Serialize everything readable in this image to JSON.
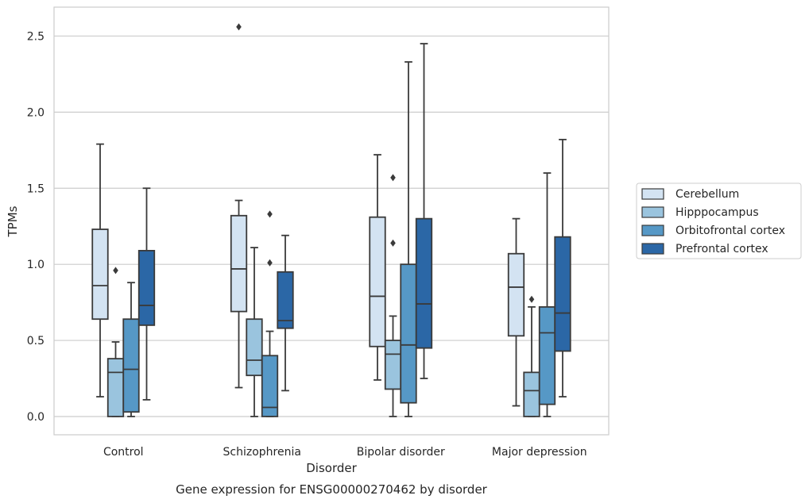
{
  "chart_data": {
    "type": "box",
    "caption": "Gene expression for ENSG00000270462 by disorder",
    "xlabel": "Disorder",
    "ylabel": "TPMs",
    "ylim": [
      -0.12,
      2.69
    ],
    "yticks": [
      "0.0",
      "0.5",
      "1.0",
      "1.5",
      "2.0",
      "2.5"
    ],
    "grid": "horizontal",
    "legend_position": "right",
    "categories": [
      "Control",
      "Schizophrenia",
      "Bipolar disorder",
      "Major depression"
    ],
    "series": [
      {
        "name": "Cerebellum",
        "color": "#d3e3f2",
        "boxes": [
          {
            "whislo": 0.13,
            "q1": 0.64,
            "med": 0.86,
            "q3": 1.23,
            "whishi": 1.79,
            "fliers": []
          },
          {
            "whislo": 0.19,
            "q1": 0.69,
            "med": 0.97,
            "q3": 1.32,
            "whishi": 1.42,
            "fliers": [
              2.56
            ]
          },
          {
            "whislo": 0.24,
            "q1": 0.46,
            "med": 0.79,
            "q3": 1.31,
            "whishi": 1.72,
            "fliers": []
          },
          {
            "whislo": 0.07,
            "q1": 0.53,
            "med": 0.85,
            "q3": 1.07,
            "whishi": 1.3,
            "fliers": []
          }
        ]
      },
      {
        "name": "Hipppocampus",
        "color": "#9ac4de",
        "boxes": [
          {
            "whislo": 0.0,
            "q1": 0.0,
            "med": 0.29,
            "q3": 0.38,
            "whishi": 0.49,
            "fliers": [
              0.96
            ]
          },
          {
            "whislo": 0.0,
            "q1": 0.27,
            "med": 0.37,
            "q3": 0.64,
            "whishi": 1.11,
            "fliers": []
          },
          {
            "whislo": 0.0,
            "q1": 0.18,
            "med": 0.41,
            "q3": 0.5,
            "whishi": 0.66,
            "fliers": [
              1.14,
              1.57
            ]
          },
          {
            "whislo": 0.0,
            "q1": 0.0,
            "med": 0.17,
            "q3": 0.29,
            "whishi": 0.72,
            "fliers": [
              0.77
            ]
          }
        ]
      },
      {
        "name": "Orbitofrontal cortex",
        "color": "#5698c6",
        "boxes": [
          {
            "whislo": 0.0,
            "q1": 0.03,
            "med": 0.31,
            "q3": 0.64,
            "whishi": 0.88,
            "fliers": []
          },
          {
            "whislo": 0.0,
            "q1": 0.0,
            "med": 0.06,
            "q3": 0.4,
            "whishi": 0.56,
            "fliers": [
              1.01,
              1.33
            ]
          },
          {
            "whislo": 0.0,
            "q1": 0.09,
            "med": 0.47,
            "q3": 1.0,
            "whishi": 2.33,
            "fliers": []
          },
          {
            "whislo": 0.0,
            "q1": 0.08,
            "med": 0.55,
            "q3": 0.72,
            "whishi": 1.6,
            "fliers": []
          }
        ]
      },
      {
        "name": "Prefrontal cortex",
        "color": "#2b67a6",
        "boxes": [
          {
            "whislo": 0.11,
            "q1": 0.6,
            "med": 0.73,
            "q3": 1.09,
            "whishi": 1.5,
            "fliers": []
          },
          {
            "whislo": 0.17,
            "q1": 0.58,
            "med": 0.63,
            "q3": 0.95,
            "whishi": 1.19,
            "fliers": []
          },
          {
            "whislo": 0.25,
            "q1": 0.45,
            "med": 0.74,
            "q3": 1.3,
            "whishi": 2.45,
            "fliers": []
          },
          {
            "whislo": 0.13,
            "q1": 0.43,
            "med": 0.68,
            "q3": 1.18,
            "whishi": 1.82,
            "fliers": []
          }
        ]
      }
    ]
  }
}
